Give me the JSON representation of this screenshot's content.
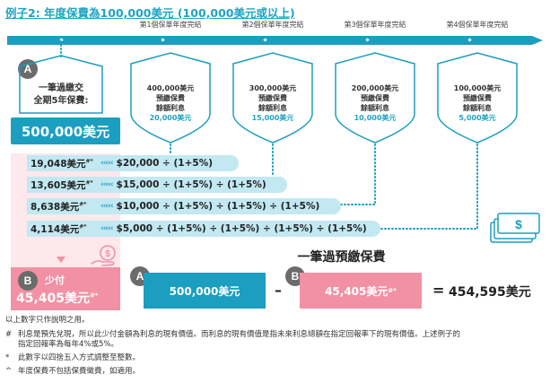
{
  "title": "例子2: 年度保費為100,000美元 (100,000美元或以上)",
  "year_labels": [
    "第1個保單年度完結",
    "第2個保單年度完結",
    "第3個保單年度完結",
    "第4個保單年度完結"
  ],
  "label_a": {
    "badge": "A",
    "line1": "一筆過繳交",
    "line2": "全期5年保費:",
    "total": "500,000美元"
  },
  "shields": [
    {
      "amount": "400,000美元",
      "line1": "預繳保費",
      "line2": "餘額利息",
      "interest": "20,000美元"
    },
    {
      "amount": "300,000美元",
      "line1": "預繳保費",
      "line2": "餘額利息",
      "interest": "15,000美元"
    },
    {
      "amount": "200,000美元",
      "line1": "預繳保費",
      "line2": "餘額利息",
      "interest": "10,000美元"
    },
    {
      "amount": "100,000美元",
      "line1": "預繳保費",
      "line2": "餘額利息",
      "interest": "5,000美元"
    }
  ],
  "bars": [
    {
      "pv": "19,048美元",
      "mark": "#*",
      "formula": "$20,000 ÷ (1+5%)"
    },
    {
      "pv": "13,605美元",
      "mark": "#*",
      "formula": "$15,000 ÷ (1+5%) ÷ (1+5%)"
    },
    {
      "pv": "8,638美元",
      "mark": "#*",
      "formula": "$10,000 ÷ (1+5%) ÷ (1+5%) ÷ (1+5%)"
    },
    {
      "pv": "4,114美元",
      "mark": "#*",
      "formula": "$5,000 ÷ (1+5%) ÷ (1+5%) ÷ (1+5%) ÷ (1+5%)"
    }
  ],
  "label_b": {
    "badge": "B",
    "text": "少付",
    "amount": "45,405美元",
    "mark": "#*"
  },
  "equation": {
    "heading": "一筆過預繳保費",
    "badge_a": "A",
    "value_a": "500,000美元",
    "minus": "–",
    "badge_b": "B",
    "value_b": "45,405美元",
    "mark_b": "#*",
    "equals": "=",
    "result": "454,595美元"
  },
  "notes": [
    {
      "mark": "",
      "text": "以上數字只作說明之用。"
    },
    {
      "mark": "#",
      "text": "利息是預先兌現，所以此少付金額為利息的現有價值。而利息的現有價值是指未來利息總額在指定回報率下的現有價值。上述例子的"
    },
    {
      "mark": "",
      "text": "指定回報率為每年4%或5%。"
    },
    {
      "mark": "*",
      "text": "此數字以四捨五入方式調整至整數。"
    },
    {
      "mark": "^",
      "text": "年度保費不包括保費徵費，如適用。"
    }
  ],
  "colors": {
    "accent": "#1b9ec0",
    "light_blue": "#c2e8f2",
    "pink": "#f291a4",
    "pale_pink": "#fde8ec",
    "badge_gray": "#6b6b6b"
  },
  "icons": [
    "money-hand-icon",
    "cash-stack-icon"
  ]
}
